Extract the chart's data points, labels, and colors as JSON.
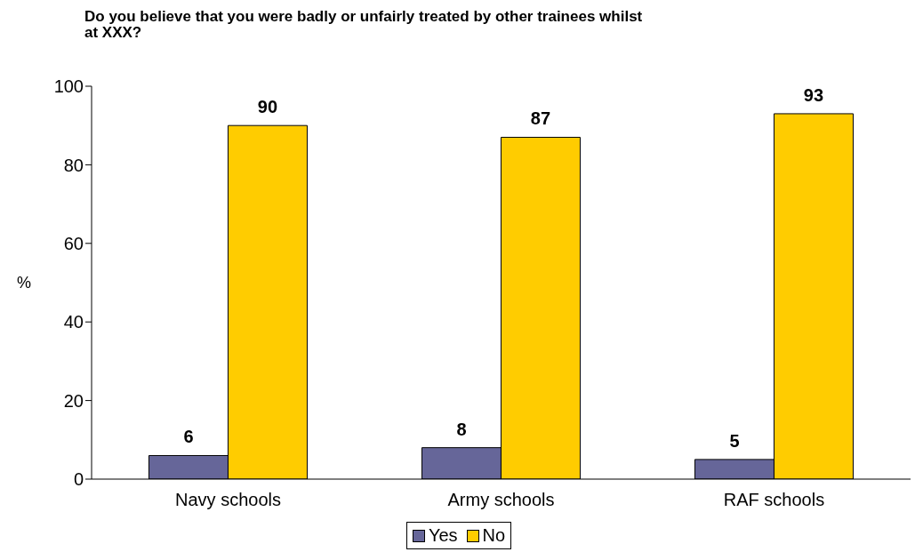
{
  "chart_data": {
    "type": "bar",
    "title": "Do you believe that you were badly or unfairly treated by other trainees whilst at XXX?",
    "ylabel": "%",
    "categories": [
      "Navy schools",
      "Army schools",
      "RAF schools"
    ],
    "series": [
      {
        "name": "Yes",
        "color": "#666699",
        "values": [
          6,
          8,
          5
        ]
      },
      {
        "name": "No",
        "color": "#ffcc00",
        "values": [
          90,
          87,
          93
        ]
      }
    ],
    "ylim": [
      0,
      100
    ],
    "yticks": [
      0,
      20,
      40,
      60,
      80,
      100
    ],
    "legend": "bottom",
    "data_labels": true
  }
}
